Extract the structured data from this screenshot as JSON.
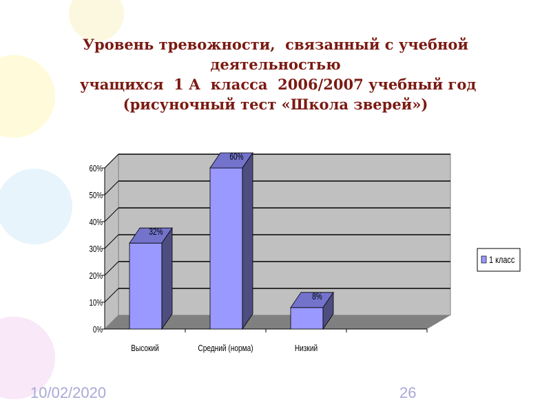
{
  "slide": {
    "title_lines": [
      "Уровень тревожности,  связанный с учебной",
      "деятельностью",
      " учащихся  1 А  класса  2006/2007 учебный год",
      "(рисуночный тест «Школа зверей»)"
    ],
    "date": "10/02/2020",
    "page_number": "26"
  },
  "chart_data": {
    "type": "bar",
    "style": "3d-column",
    "categories": [
      "Высокий",
      "Средний (норма)",
      "Низкий",
      ""
    ],
    "series": [
      {
        "name": "1 класс",
        "values": [
          32,
          60,
          8,
          null
        ],
        "data_labels": [
          "32%",
          "60%",
          "8%",
          ""
        ]
      }
    ],
    "yticks": [
      "0%",
      "10%",
      "20%",
      "30%",
      "40%",
      "50%",
      "60%"
    ],
    "ylim": [
      0,
      60
    ],
    "grid": true,
    "legend": "right",
    "colors": {
      "bar_front": "#9999ff",
      "bar_top": "#7373cc",
      "bar_side": "#4d4d80",
      "wall": "#c0c0c0",
      "floor": "#808080",
      "title": "#7a1a12"
    }
  }
}
